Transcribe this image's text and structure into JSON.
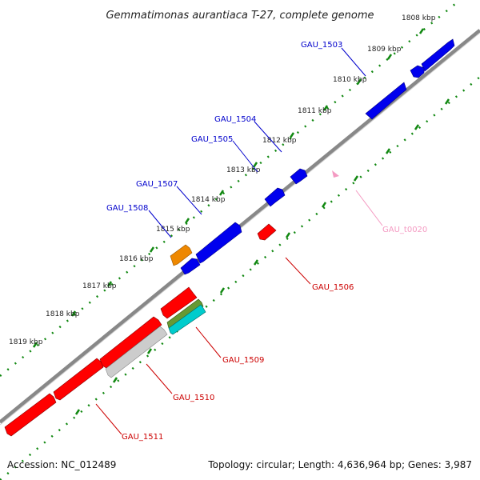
{
  "title": "Gemmatimonas aurantiaca T-27, complete genome",
  "accession": "Accession: NC_012489",
  "summary": "Topology: circular; Length: 4,636,964 bp; Genes: 3,987",
  "ruler": [
    {
      "label": "1808 kbp"
    },
    {
      "label": "1809 kbp"
    },
    {
      "label": "1810 kbp"
    },
    {
      "label": "1811 kbp"
    },
    {
      "label": "1812 kbp"
    },
    {
      "label": "1813 kbp"
    },
    {
      "label": "1814 kbp"
    },
    {
      "label": "1815 kbp"
    },
    {
      "label": "1816 kbp"
    },
    {
      "label": "1817 kbp"
    },
    {
      "label": "1818 kbp"
    },
    {
      "label": "1819 kbp"
    }
  ],
  "genes": [
    {
      "name": "GAU_1503",
      "color": "#0000cc"
    },
    {
      "name": "GAU_1504",
      "color": "#0000cc"
    },
    {
      "name": "GAU_1505",
      "color": "#0000cc"
    },
    {
      "name": "GAU_1507",
      "color": "#0000cc"
    },
    {
      "name": "GAU_1508",
      "color": "#0000cc"
    },
    {
      "name": "GAU_t0020",
      "color": "#f49ac2"
    },
    {
      "name": "GAU_1506",
      "color": "#cc0000"
    },
    {
      "name": "GAU_1509",
      "color": "#cc0000"
    },
    {
      "name": "GAU_1510",
      "color": "#cc0000"
    },
    {
      "name": "GAU_1511",
      "color": "#cc0000"
    }
  ],
  "colors": {
    "forward": "#0000ee",
    "reverse": "#ff0000",
    "backbone": "#888888",
    "ruler": "#118811",
    "orange_feature": "#ee8800",
    "olive_feature": "#669933",
    "cyan_feature": "#00cccc",
    "gray_feature": "#cccccc",
    "trna": "#f49ac2"
  }
}
